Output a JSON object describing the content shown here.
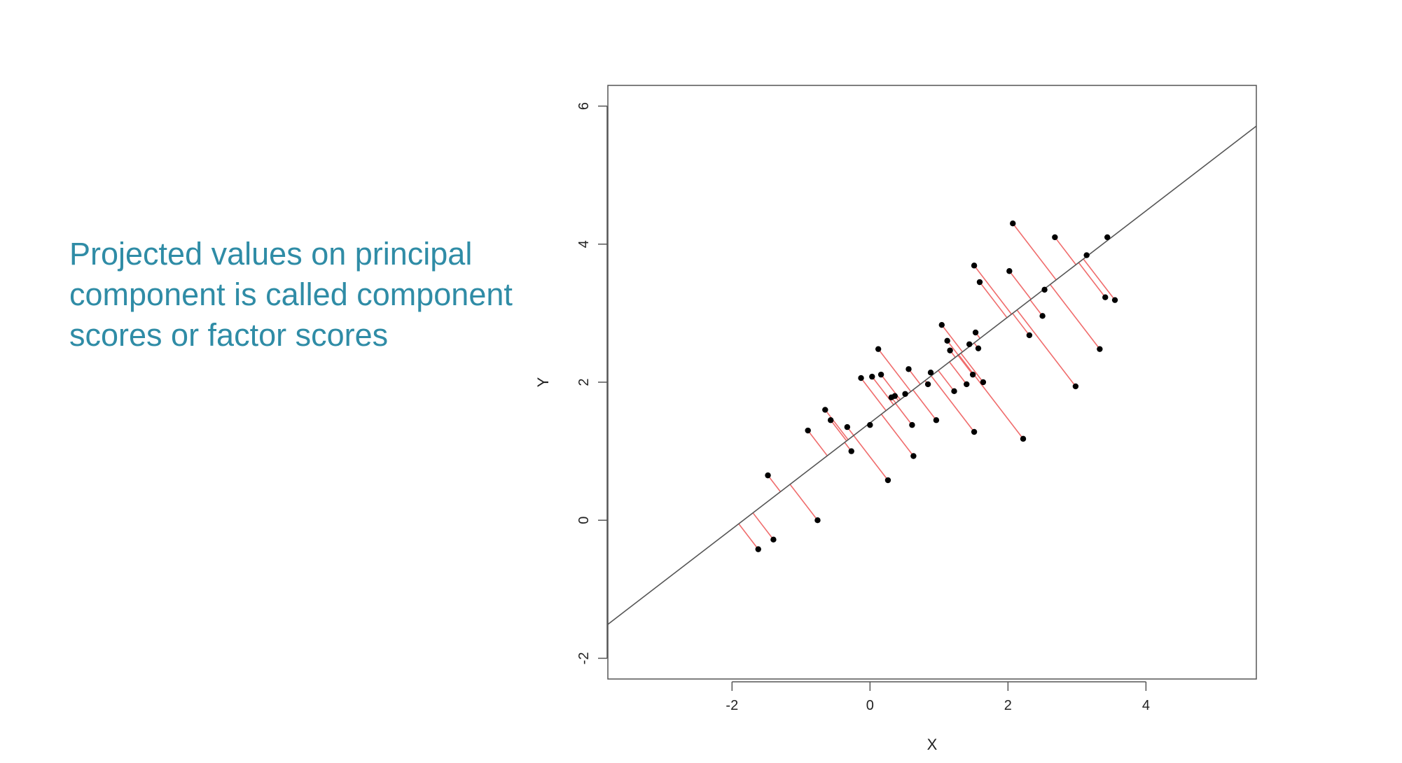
{
  "caption": "Projected values on principal component is called component scores or factor scores",
  "chart_data": {
    "type": "scatter",
    "title": "",
    "xlabel": "X",
    "ylabel": "Y",
    "xlim": [
      -3.8,
      5.6
    ],
    "ylim": [
      -2.3,
      6.3
    ],
    "xticks": [
      -2,
      0,
      2,
      4
    ],
    "yticks": [
      -2,
      0,
      2,
      4,
      6
    ],
    "grid": false,
    "legend": "none",
    "colors": {
      "points": "#000000",
      "projection": "#f06c6c",
      "line": "#555555",
      "frame": "#555555"
    },
    "line": {
      "slope": 0.768,
      "intercept": 1.41
    },
    "points": [
      {
        "x": -1.62,
        "y": -0.42
      },
      {
        "x": -1.4,
        "y": -0.28
      },
      {
        "x": -1.48,
        "y": 0.65
      },
      {
        "x": -0.76,
        "y": 0.0
      },
      {
        "x": -0.9,
        "y": 1.3
      },
      {
        "x": -0.65,
        "y": 1.6
      },
      {
        "x": -0.57,
        "y": 1.45
      },
      {
        "x": -0.33,
        "y": 1.35
      },
      {
        "x": -0.27,
        "y": 1.0
      },
      {
        "x": -0.13,
        "y": 2.06
      },
      {
        "x": 0.0,
        "y": 1.38
      },
      {
        "x": 0.03,
        "y": 2.08
      },
      {
        "x": 0.12,
        "y": 2.48
      },
      {
        "x": 0.16,
        "y": 2.11
      },
      {
        "x": 0.26,
        "y": 0.58
      },
      {
        "x": 0.31,
        "y": 1.78
      },
      {
        "x": 0.36,
        "y": 1.8
      },
      {
        "x": 0.51,
        "y": 1.83
      },
      {
        "x": 0.56,
        "y": 2.19
      },
      {
        "x": 0.61,
        "y": 1.38
      },
      {
        "x": 0.63,
        "y": 0.93
      },
      {
        "x": 0.84,
        "y": 1.97
      },
      {
        "x": 0.88,
        "y": 2.14
      },
      {
        "x": 0.96,
        "y": 1.45
      },
      {
        "x": 1.04,
        "y": 2.83
      },
      {
        "x": 1.12,
        "y": 2.6
      },
      {
        "x": 1.16,
        "y": 2.46
      },
      {
        "x": 1.22,
        "y": 1.87
      },
      {
        "x": 1.4,
        "y": 1.97
      },
      {
        "x": 1.44,
        "y": 2.55
      },
      {
        "x": 1.49,
        "y": 2.11
      },
      {
        "x": 1.51,
        "y": 1.28
      },
      {
        "x": 1.53,
        "y": 2.72
      },
      {
        "x": 1.51,
        "y": 3.69
      },
      {
        "x": 1.57,
        "y": 2.49
      },
      {
        "x": 1.59,
        "y": 3.45
      },
      {
        "x": 1.64,
        "y": 2.0
      },
      {
        "x": 2.02,
        "y": 3.61
      },
      {
        "x": 2.07,
        "y": 4.3
      },
      {
        "x": 2.22,
        "y": 1.18
      },
      {
        "x": 2.31,
        "y": 2.68
      },
      {
        "x": 2.5,
        "y": 2.96
      },
      {
        "x": 2.53,
        "y": 3.34
      },
      {
        "x": 2.68,
        "y": 4.1
      },
      {
        "x": 2.98,
        "y": 1.94
      },
      {
        "x": 3.14,
        "y": 3.84
      },
      {
        "x": 3.33,
        "y": 2.48
      },
      {
        "x": 3.41,
        "y": 3.23
      },
      {
        "x": 3.44,
        "y": 4.1
      },
      {
        "x": 3.55,
        "y": 3.19
      }
    ]
  }
}
